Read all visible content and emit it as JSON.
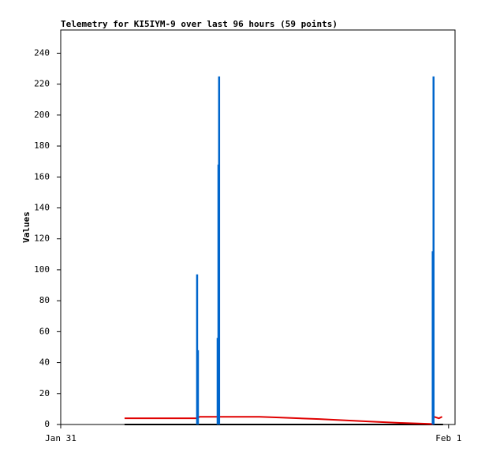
{
  "chart_data": {
    "type": "line",
    "title": "Telemetry for KI5IYM-9 over last 96 hours (59 points)",
    "y_label": "Values",
    "xlim": [
      0,
      24.4
    ],
    "ylim": [
      0,
      255
    ],
    "xticks": [
      {
        "value": 0,
        "label": "Jan 31"
      },
      {
        "value": 24,
        "label": "Feb 1"
      }
    ],
    "yticks": [
      0,
      20,
      40,
      60,
      80,
      100,
      120,
      140,
      160,
      180,
      200,
      220,
      240
    ],
    "grid": false,
    "series": [
      {
        "color": "#000000",
        "style": "line",
        "x": [
          3.95,
          23.66
        ],
        "values": [
          0,
          0
        ]
      },
      {
        "color": "#e00000",
        "style": "line",
        "x": [
          3.95,
          8.4,
          8.6,
          12.3,
          13.5,
          16,
          19,
          21,
          22.5,
          23.0,
          23.1,
          23.4,
          23.6
        ],
        "values": [
          4,
          4,
          5,
          5,
          4.5,
          3.5,
          2,
          1,
          0.5,
          0.3,
          5,
          4,
          5
        ]
      },
      {
        "color": "#0066cc",
        "style": "impulse",
        "x": [
          8.44,
          8.49,
          9.71,
          9.76,
          9.8,
          23.02,
          23.07
        ],
        "values": [
          97,
          48,
          56,
          168,
          225,
          112,
          225
        ]
      }
    ]
  }
}
